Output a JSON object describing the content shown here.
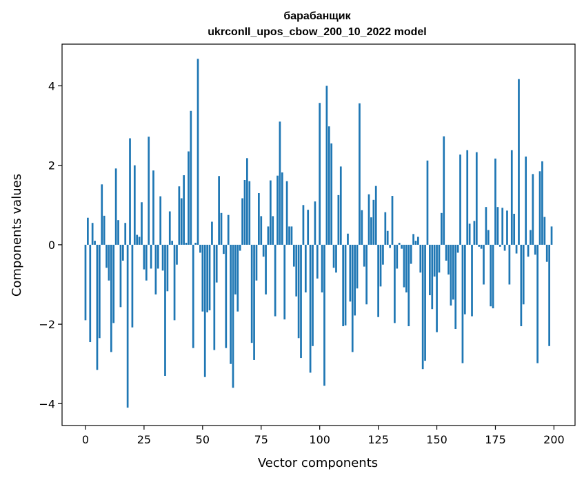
{
  "chart_data": {
    "type": "bar",
    "title_line1": "барабанщик",
    "title_line2": "ukrconll_upos_cbow_200_10_2022 model",
    "xlabel": "Vector components",
    "ylabel": "Components values",
    "xlim": [
      -10,
      209
    ],
    "ylim": [
      -4.55,
      5.05
    ],
    "xticks": [
      0,
      25,
      50,
      75,
      100,
      125,
      150,
      175,
      200
    ],
    "yticks": [
      -4,
      -2,
      0,
      2,
      4
    ],
    "bar_color": "#1f77b4",
    "grid": false,
    "legend": "none",
    "values": [
      -1.9,
      0.68,
      -2.45,
      0.55,
      0.1,
      -3.15,
      -2.35,
      1.52,
      0.73,
      -0.58,
      -0.9,
      -2.7,
      -1.97,
      1.92,
      0.62,
      -1.57,
      -0.4,
      0.55,
      -4.1,
      2.68,
      -2.08,
      2.0,
      0.25,
      0.2,
      1.07,
      -0.62,
      -0.9,
      2.72,
      -0.6,
      1.87,
      -1.25,
      -0.6,
      1.22,
      -0.65,
      -3.3,
      -1.17,
      0.84,
      0.1,
      -1.9,
      -0.5,
      1.47,
      1.17,
      1.75,
      0.05,
      2.35,
      3.37,
      -2.6,
      0.05,
      4.68,
      -0.2,
      -1.68,
      -3.33,
      -1.7,
      -1.65,
      0.58,
      -2.65,
      -0.95,
      1.73,
      0.8,
      -0.23,
      -2.6,
      0.75,
      -3.0,
      -3.6,
      -1.25,
      -1.68,
      -0.15,
      1.17,
      1.63,
      2.18,
      1.6,
      -2.47,
      -2.9,
      -0.9,
      1.3,
      0.72,
      -0.3,
      -1.25,
      0.46,
      1.62,
      0.72,
      -1.8,
      1.74,
      3.1,
      1.82,
      -1.88,
      1.6,
      0.46,
      0.46,
      -0.55,
      -1.3,
      -2.35,
      -2.85,
      1.0,
      -1.2,
      0.88,
      -3.22,
      -2.55,
      1.09,
      -0.85,
      3.57,
      -1.2,
      -3.55,
      4.0,
      2.98,
      2.55,
      -0.58,
      -0.7,
      1.25,
      1.97,
      -2.05,
      -2.03,
      0.28,
      -1.43,
      -2.7,
      -1.78,
      -1.1,
      3.56,
      0.87,
      -0.55,
      -1.5,
      1.27,
      0.69,
      1.13,
      1.48,
      -1.82,
      -1.05,
      -0.5,
      0.82,
      0.35,
      -0.08,
      1.23,
      -1.97,
      -0.6,
      0.05,
      -0.1,
      -1.07,
      -1.2,
      -2.05,
      -0.48,
      0.27,
      0.1,
      0.2,
      -0.7,
      -3.13,
      -2.92,
      2.12,
      -1.27,
      -1.62,
      -0.8,
      -2.2,
      -0.7,
      0.8,
      2.73,
      -0.4,
      -0.75,
      -1.53,
      -1.38,
      -2.12,
      -0.2,
      2.27,
      -2.98,
      -1.75,
      2.38,
      0.53,
      -1.8,
      0.6,
      2.33,
      -0.05,
      -0.1,
      -1.0,
      0.95,
      0.37,
      -1.55,
      -1.6,
      2.17,
      0.95,
      -0.05,
      0.93,
      -0.15,
      0.86,
      -1.0,
      2.38,
      0.78,
      -0.22,
      4.17,
      -2.05,
      -1.5,
      2.22,
      -0.3,
      0.37,
      1.78,
      -0.25,
      -2.98,
      1.85,
      2.1,
      0.7,
      -0.43,
      -2.55,
      0.46
    ]
  }
}
